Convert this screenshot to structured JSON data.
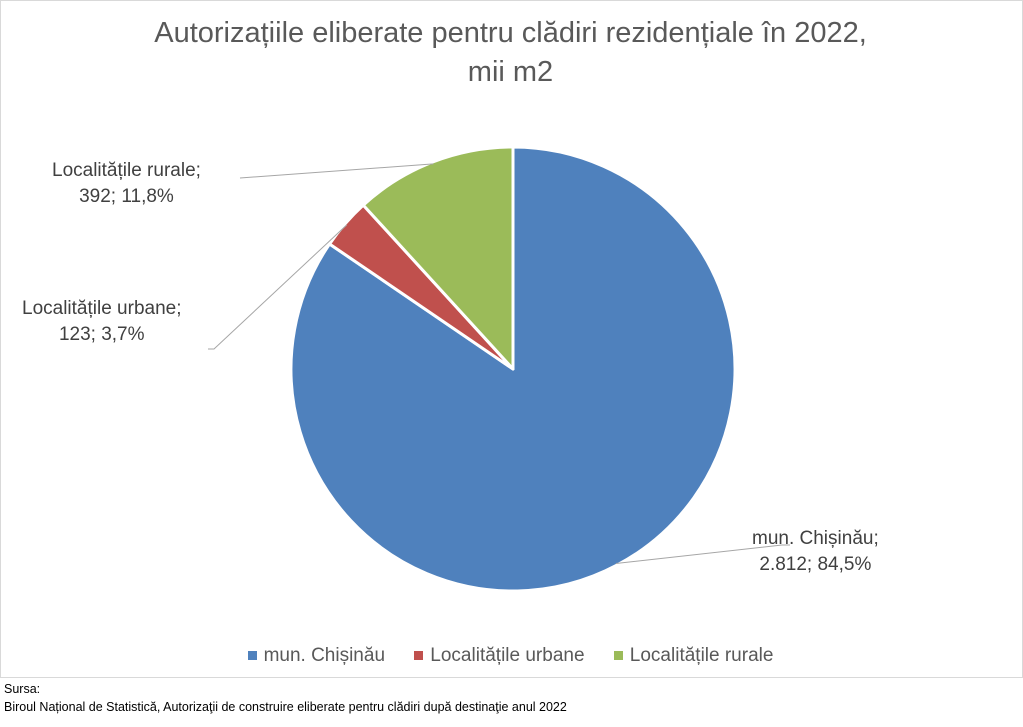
{
  "title_lines": [
    "Autorizațiile eliberate pentru clădiri rezidențiale în 2022,",
    "mii m2"
  ],
  "chart_data": {
    "type": "pie",
    "title": "Autorizațiile eliberate pentru clădiri rezidențiale în 2022, mii m2",
    "slices": [
      {
        "name": "mun. Chișinău",
        "value": 2812,
        "percent": 84.5,
        "label_line1": "mun. Chișinău;",
        "label_line2": "2.812; 84,5%",
        "color": "#4f81bd"
      },
      {
        "name": "Localitățile urbane",
        "value": 123,
        "percent": 3.7,
        "label_line1": "Localitățile urbane;",
        "label_line2": "123; 3,7%",
        "color": "#c0504d"
      },
      {
        "name": "Localitățile rurale",
        "value": 392,
        "percent": 11.8,
        "label_line1": "Localitățile rurale;",
        "label_line2": "392; 11,8%",
        "color": "#9bbb59"
      }
    ],
    "legend_position": "bottom"
  },
  "legend": [
    {
      "label": "mun. Chișinău",
      "color": "#4f81bd"
    },
    {
      "label": "Localitățile urbane",
      "color": "#c0504d"
    },
    {
      "label": "Localitățile rurale",
      "color": "#9bbb59"
    }
  ],
  "source": {
    "line1": "Sursa:",
    "line2": "Biroul Național de Statistică, Autorizaţii de construire eliberate pentru clădiri după destinaţie anul 2022"
  }
}
